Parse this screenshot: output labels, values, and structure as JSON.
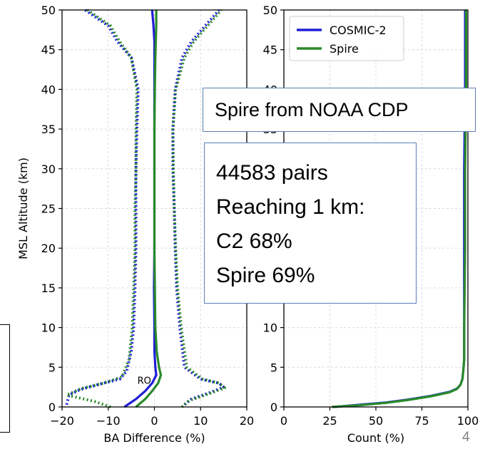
{
  "chart_data": [
    {
      "type": "line",
      "xlabel": "BA Difference (%)",
      "ylabel": "MSL Altitude (km)",
      "xlim": [
        -20,
        20
      ],
      "ylim": [
        0,
        50
      ],
      "xticks": [
        -20,
        -10,
        0,
        10,
        20
      ],
      "xtick_labels": [
        "−20",
        "−10",
        "0",
        "10",
        "20"
      ],
      "yticks": [
        0,
        5,
        10,
        15,
        20,
        25,
        30,
        35,
        40,
        45,
        50
      ],
      "grid": true,
      "annotation": "RO",
      "series": [
        {
          "name": "COSMIC-2",
          "style": "solid",
          "color": "#1f1fd6",
          "x": [
            -6.5,
            -4,
            -2,
            -0.5,
            0.4,
            0.2,
            0,
            0,
            -0.1,
            0,
            0,
            0,
            0,
            0,
            0,
            0,
            -0.2,
            -0.5
          ],
          "y": [
            0,
            1,
            2,
            3,
            4,
            5,
            7,
            10,
            15,
            20,
            25,
            30,
            35,
            40,
            44,
            46,
            48,
            50
          ]
        },
        {
          "name": "Spire",
          "style": "solid",
          "color": "#2a8a2a",
          "x": [
            -4,
            -2,
            -0.5,
            0.8,
            1.4,
            1,
            0.5,
            0.2,
            0.1,
            0,
            0,
            0,
            0,
            0.1,
            0.2,
            0.3,
            0.4,
            0.4
          ],
          "y": [
            0,
            1,
            2,
            3,
            4,
            5,
            7,
            10,
            15,
            20,
            25,
            30,
            35,
            40,
            44,
            46,
            48,
            50
          ]
        },
        {
          "name": "COSMIC-2 spread low",
          "style": "dotted",
          "color": "#1f1fd6",
          "x": [
            -19,
            -18.5,
            -16,
            -11,
            -7.5,
            -6,
            -5,
            -4.5,
            -4.2,
            -4,
            -4,
            -4,
            -3.8,
            -3.5,
            -5,
            -8,
            -10,
            -15
          ],
          "y": [
            0.3,
            1.5,
            2.2,
            3,
            3.5,
            4.5,
            7,
            10,
            15,
            20,
            25,
            30,
            35,
            40,
            44,
            46,
            48,
            50
          ]
        },
        {
          "name": "COSMIC-2 spread high",
          "style": "dotted",
          "color": "#1f1fd6",
          "x": [
            6.5,
            8,
            12,
            15,
            14,
            10,
            6.5,
            5.5,
            4.8,
            4.5,
            4.3,
            4,
            4,
            4.5,
            6,
            8,
            11,
            14
          ],
          "y": [
            0.3,
            1,
            1.8,
            2.5,
            3,
            3.5,
            5,
            10,
            15,
            20,
            25,
            30,
            35,
            40,
            44,
            46,
            48,
            50
          ]
        },
        {
          "name": "Spire spread low",
          "style": "dotted",
          "color": "#2a8a2a",
          "x": [
            -9.5,
            -13,
            -19,
            -16,
            -11,
            -7,
            -5.5,
            -4.8,
            -4.5,
            -4.2,
            -4.2,
            -4,
            -4,
            -3.8,
            -5,
            -7.5,
            -9.5,
            -14.5
          ],
          "y": [
            0,
            0.7,
            1.5,
            2.3,
            3,
            3.8,
            6,
            10,
            15,
            20,
            25,
            30,
            35,
            40,
            44,
            46,
            48,
            50
          ]
        },
        {
          "name": "Spire spread high",
          "style": "dotted",
          "color": "#2a8a2a",
          "x": [
            6,
            7.5,
            11.5,
            15.2,
            14,
            10.5,
            7,
            5.8,
            5,
            4.6,
            4.3,
            4.1,
            4,
            4.6,
            6.5,
            8.5,
            11.5,
            14.5
          ],
          "y": [
            0,
            0.8,
            1.6,
            2.4,
            3,
            3.5,
            5,
            10,
            15,
            20,
            25,
            30,
            35,
            40,
            44,
            46,
            48,
            50
          ]
        }
      ]
    },
    {
      "type": "line",
      "xlabel": "Count (%)",
      "ylabel": "",
      "xlim": [
        0,
        100
      ],
      "ylim": [
        0,
        50
      ],
      "xticks": [
        0,
        25,
        50,
        75,
        100
      ],
      "xtick_labels": [
        "0",
        "25",
        "50",
        "75",
        "100"
      ],
      "yticks": [
        0,
        5,
        10,
        15,
        20,
        25,
        30,
        35,
        40,
        45,
        50
      ],
      "grid": true,
      "legend": "top-left",
      "series": [
        {
          "name": "COSMIC-2",
          "color": "#1f1fd6",
          "x": [
            27,
            40,
            55,
            68,
            80,
            90,
            94,
            96,
            97,
            97.5,
            98,
            98,
            98,
            98,
            98.5,
            98.5
          ],
          "y": [
            0,
            0.25,
            0.55,
            0.95,
            1.4,
            1.9,
            2.3,
            2.8,
            3.5,
            4.5,
            6,
            10,
            20,
            30,
            40,
            50
          ]
        },
        {
          "name": "Spire",
          "color": "#2a8a2a",
          "x": [
            26,
            40,
            55,
            68,
            80,
            90,
            94,
            96,
            97,
            97.5,
            98,
            98,
            98.5,
            98.5,
            99,
            99
          ],
          "y": [
            0,
            0.2,
            0.5,
            0.9,
            1.35,
            1.85,
            2.25,
            2.8,
            3.5,
            4.5,
            6,
            10,
            20,
            30,
            40,
            50
          ]
        }
      ]
    }
  ],
  "callouts": {
    "source": "Spire from NOAA CDP",
    "pairs": "44583 pairs",
    "reaching": "Reaching 1 km:",
    "c2": "C2 68%",
    "spire": "Spire 69%"
  },
  "slide_number": "4"
}
